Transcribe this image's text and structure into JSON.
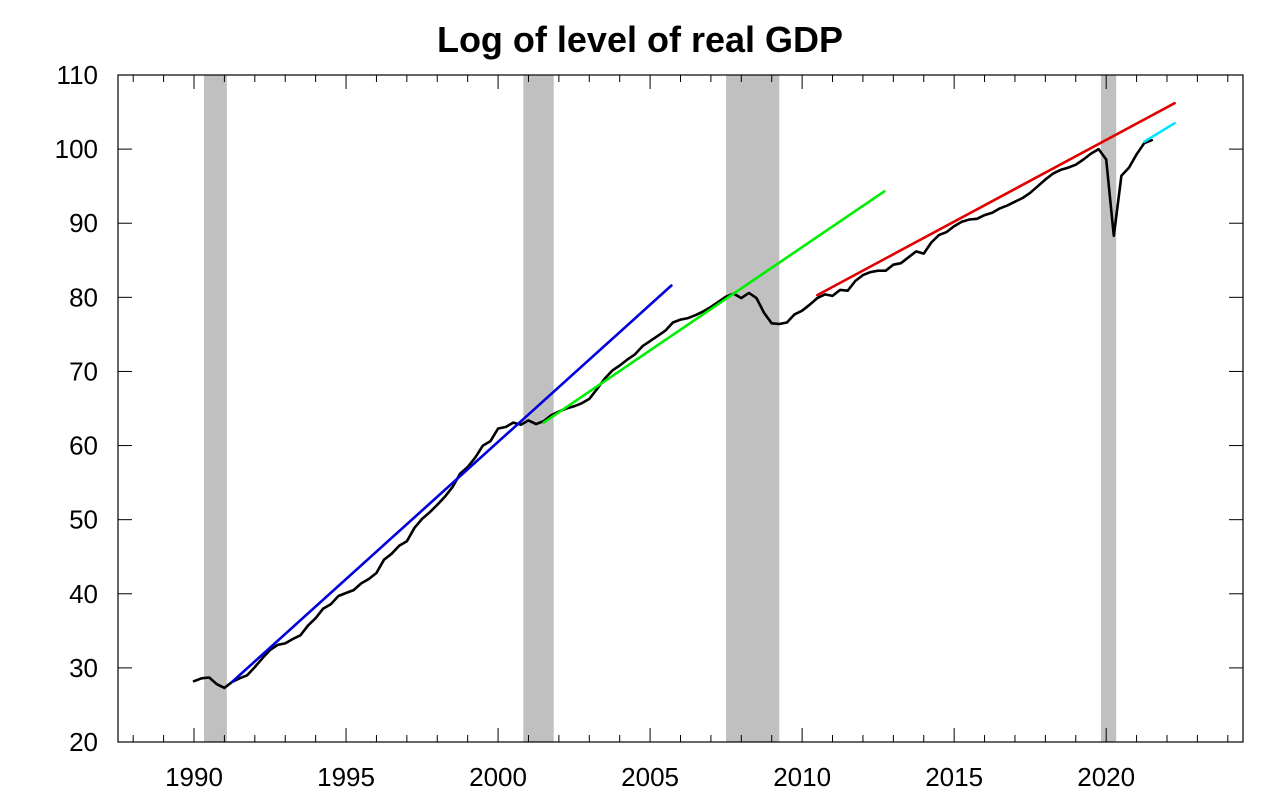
{
  "chart_data": {
    "type": "line",
    "title": "Log of level of real GDP",
    "xlabel": "",
    "ylabel": "",
    "xlim": [
      1987.5,
      2024.5
    ],
    "ylim": [
      20,
      110
    ],
    "x_ticks": [
      1990,
      1995,
      2000,
      2005,
      2010,
      2015,
      2020
    ],
    "y_ticks": [
      20,
      30,
      40,
      50,
      60,
      70,
      80,
      90,
      100,
      110
    ],
    "grid": false,
    "legend": "none",
    "recessions": [
      {
        "start": 1990.33,
        "end": 1991.08
      },
      {
        "start": 2000.83,
        "end": 2001.83
      },
      {
        "start": 2007.5,
        "end": 2009.25
      },
      {
        "start": 2019.83,
        "end": 2020.33
      }
    ],
    "recession_color": "#c0c0c0",
    "series": [
      {
        "color": "#000000",
        "points": [
          [
            1990.0,
            28.2
          ],
          [
            1990.25,
            28.6
          ],
          [
            1990.5,
            28.7
          ],
          [
            1990.75,
            27.8
          ],
          [
            1991.0,
            27.3
          ],
          [
            1991.25,
            28.1
          ],
          [
            1991.5,
            28.6
          ],
          [
            1991.75,
            29.0
          ],
          [
            1992.0,
            30.1
          ],
          [
            1992.25,
            31.3
          ],
          [
            1992.5,
            32.4
          ],
          [
            1992.75,
            33.1
          ],
          [
            1993.0,
            33.3
          ],
          [
            1993.25,
            33.9
          ],
          [
            1993.5,
            34.4
          ],
          [
            1993.75,
            35.7
          ],
          [
            1994.0,
            36.7
          ],
          [
            1994.25,
            38.0
          ],
          [
            1994.5,
            38.6
          ],
          [
            1994.75,
            39.7
          ],
          [
            1995.0,
            40.1
          ],
          [
            1995.25,
            40.5
          ],
          [
            1995.5,
            41.4
          ],
          [
            1995.75,
            42.0
          ],
          [
            1996.0,
            42.8
          ],
          [
            1996.25,
            44.6
          ],
          [
            1996.5,
            45.4
          ],
          [
            1996.75,
            46.5
          ],
          [
            1997.0,
            47.1
          ],
          [
            1997.25,
            48.9
          ],
          [
            1997.5,
            50.1
          ],
          [
            1997.75,
            51.0
          ],
          [
            1998.0,
            52.0
          ],
          [
            1998.25,
            53.1
          ],
          [
            1998.5,
            54.4
          ],
          [
            1998.75,
            56.2
          ],
          [
            1999.0,
            57.1
          ],
          [
            1999.25,
            58.4
          ],
          [
            1999.5,
            60.0
          ],
          [
            1999.75,
            60.6
          ],
          [
            2000.0,
            62.3
          ],
          [
            2000.25,
            62.5
          ],
          [
            2000.5,
            63.1
          ],
          [
            2000.75,
            62.8
          ],
          [
            2001.0,
            63.4
          ],
          [
            2001.25,
            62.9
          ],
          [
            2001.5,
            63.3
          ],
          [
            2001.75,
            64.1
          ],
          [
            2002.0,
            64.6
          ],
          [
            2002.25,
            65.0
          ],
          [
            2002.5,
            65.3
          ],
          [
            2002.75,
            65.7
          ],
          [
            2003.0,
            66.3
          ],
          [
            2003.25,
            67.6
          ],
          [
            2003.5,
            69.0
          ],
          [
            2003.75,
            70.1
          ],
          [
            2004.0,
            70.8
          ],
          [
            2004.25,
            71.6
          ],
          [
            2004.5,
            72.3
          ],
          [
            2004.75,
            73.4
          ],
          [
            2005.0,
            74.1
          ],
          [
            2005.25,
            74.8
          ],
          [
            2005.5,
            75.5
          ],
          [
            2005.75,
            76.6
          ],
          [
            2006.0,
            77.0
          ],
          [
            2006.25,
            77.2
          ],
          [
            2006.5,
            77.6
          ],
          [
            2006.75,
            78.1
          ],
          [
            2007.0,
            78.7
          ],
          [
            2007.25,
            79.4
          ],
          [
            2007.5,
            80.1
          ],
          [
            2007.75,
            80.5
          ],
          [
            2008.0,
            79.9
          ],
          [
            2008.25,
            80.6
          ],
          [
            2008.5,
            79.9
          ],
          [
            2008.75,
            77.9
          ],
          [
            2009.0,
            76.5
          ],
          [
            2009.25,
            76.4
          ],
          [
            2009.5,
            76.6
          ],
          [
            2009.75,
            77.7
          ],
          [
            2010.0,
            78.2
          ],
          [
            2010.25,
            79.0
          ],
          [
            2010.5,
            79.9
          ],
          [
            2010.75,
            80.4
          ],
          [
            2011.0,
            80.2
          ],
          [
            2011.25,
            81.0
          ],
          [
            2011.5,
            80.9
          ],
          [
            2011.75,
            82.2
          ],
          [
            2012.0,
            83.0
          ],
          [
            2012.25,
            83.4
          ],
          [
            2012.5,
            83.6
          ],
          [
            2012.75,
            83.6
          ],
          [
            2013.0,
            84.4
          ],
          [
            2013.25,
            84.6
          ],
          [
            2013.5,
            85.4
          ],
          [
            2013.75,
            86.2
          ],
          [
            2014.0,
            85.9
          ],
          [
            2014.25,
            87.4
          ],
          [
            2014.5,
            88.4
          ],
          [
            2014.75,
            88.8
          ],
          [
            2015.0,
            89.6
          ],
          [
            2015.25,
            90.2
          ],
          [
            2015.5,
            90.5
          ],
          [
            2015.75,
            90.6
          ],
          [
            2016.0,
            91.1
          ],
          [
            2016.25,
            91.4
          ],
          [
            2016.5,
            92.0
          ],
          [
            2016.75,
            92.4
          ],
          [
            2017.0,
            92.9
          ],
          [
            2017.25,
            93.4
          ],
          [
            2017.5,
            94.1
          ],
          [
            2017.75,
            95.0
          ],
          [
            2018.0,
            95.9
          ],
          [
            2018.25,
            96.7
          ],
          [
            2018.5,
            97.2
          ],
          [
            2018.75,
            97.5
          ],
          [
            2019.0,
            97.9
          ],
          [
            2019.25,
            98.6
          ],
          [
            2019.5,
            99.4
          ],
          [
            2019.75,
            100.0
          ],
          [
            2020.0,
            98.6
          ],
          [
            2020.25,
            88.3
          ],
          [
            2020.5,
            96.4
          ],
          [
            2020.75,
            97.5
          ],
          [
            2021.0,
            99.3
          ],
          [
            2021.25,
            100.8
          ],
          [
            2021.5,
            101.2
          ]
        ]
      },
      {
        "color": "#0000dd",
        "points": [
          [
            1991.25,
            28.1
          ],
          [
            2005.7,
            81.6
          ]
        ]
      },
      {
        "color": "#00ee00",
        "points": [
          [
            2001.5,
            63.1
          ],
          [
            2012.7,
            94.3
          ]
        ]
      },
      {
        "color": "#e00000",
        "points": [
          [
            2010.5,
            80.3
          ],
          [
            2022.25,
            106.2
          ]
        ]
      },
      {
        "color": "#00e5ff",
        "points": [
          [
            2021.25,
            101.0
          ],
          [
            2022.25,
            103.5
          ]
        ]
      }
    ]
  }
}
